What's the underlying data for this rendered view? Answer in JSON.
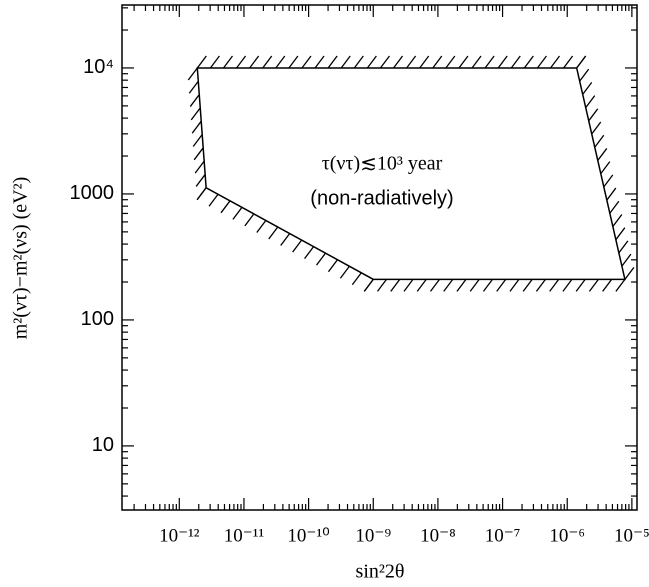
{
  "chart_data": {
    "type": "region",
    "xlabel": "sin²2θ",
    "ylabel": "m²(ντ)−m²(νs) (eV²)",
    "annotations": [
      "τ(ντ)≲10³ year",
      "(non-radiatively)"
    ],
    "log_x": true,
    "log_y": true,
    "xlim": [
      1.3e-13,
      1.2e-05
    ],
    "ylim": [
      3.1,
      31600
    ],
    "xticks": [
      {
        "value": 1e-12,
        "label": "10⁻¹²"
      },
      {
        "value": 1e-11,
        "label": "10⁻¹¹"
      },
      {
        "value": 1e-10,
        "label": "10⁻¹⁰"
      },
      {
        "value": 1e-09,
        "label": "10⁻⁹"
      },
      {
        "value": 1e-08,
        "label": "10⁻⁸"
      },
      {
        "value": 1e-07,
        "label": "10⁻⁷"
      },
      {
        "value": 1e-06,
        "label": "10⁻⁶"
      },
      {
        "value": 1e-05,
        "label": "10⁻⁵"
      }
    ],
    "yticks": [
      10,
      100,
      1000,
      {
        "value": 10000,
        "label": "10⁴"
      }
    ],
    "series": [
      {
        "color": "#000000",
        "x": [
          1.9e-12,
          2.6e-12,
          1e-09,
          7.8e-06,
          1.4e-06
        ],
        "y": [
          10000,
          1120,
          210,
          210,
          10000
        ]
      }
    ]
  }
}
